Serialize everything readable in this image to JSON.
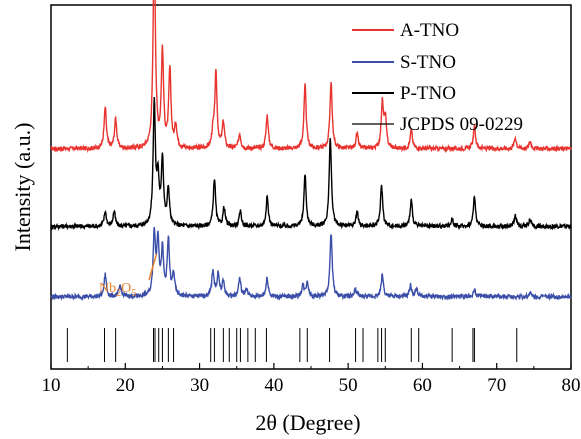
{
  "chart_data": {
    "type": "line",
    "xlabel": "2θ (Degree)",
    "ylabel": "Intensity (a.u.)",
    "xlim": [
      10,
      80
    ],
    "xticks": [
      "10",
      "20",
      "30",
      "40",
      "50",
      "60",
      "70",
      "80"
    ],
    "grid": false,
    "legend": {
      "placement": "top-right",
      "entries": [
        {
          "label": "A-TNO",
          "color": "#e8332f"
        },
        {
          "label": "S-TNO",
          "color": "#3b4fa8"
        },
        {
          "label": "P-TNO",
          "color": "#000000"
        },
        {
          "label": "JCPDS 09-0229",
          "color": "#000000"
        }
      ]
    },
    "annotation": {
      "text": "Nb",
      "sub": "2",
      "mid": "O",
      "sub2": "5",
      "x": 24.2,
      "color": "#e8822f"
    },
    "series": [
      {
        "name": "A-TNO",
        "color": "#e8332f",
        "baseline": 4.9,
        "peaks": [
          [
            17.3,
            1.1
          ],
          [
            18.7,
            0.8
          ],
          [
            23.9,
            5.6
          ],
          [
            25.0,
            2.6
          ],
          [
            26.0,
            2.1
          ],
          [
            26.8,
            0.6
          ],
          [
            31.8,
            0.4
          ],
          [
            32.2,
            2.0
          ],
          [
            33.2,
            0.7
          ],
          [
            35.4,
            0.4
          ],
          [
            39.1,
            0.9
          ],
          [
            44.2,
            1.7
          ],
          [
            47.7,
            1.8
          ],
          [
            51.2,
            0.4
          ],
          [
            54.6,
            1.2
          ],
          [
            55.0,
            0.8
          ],
          [
            58.5,
            0.5
          ],
          [
            67.0,
            0.6
          ],
          [
            72.5,
            0.3
          ],
          [
            74.5,
            0.2
          ]
        ]
      },
      {
        "name": "P-TNO",
        "color": "#000000",
        "baseline": 2.8,
        "peaks": [
          [
            17.3,
            0.4
          ],
          [
            18.5,
            0.4
          ],
          [
            23.9,
            3.3
          ],
          [
            24.4,
            1.2
          ],
          [
            25.0,
            1.8
          ],
          [
            25.8,
            1.0
          ],
          [
            32.0,
            1.3
          ],
          [
            33.3,
            0.5
          ],
          [
            35.5,
            0.4
          ],
          [
            39.1,
            0.8
          ],
          [
            44.2,
            1.4
          ],
          [
            47.6,
            2.4
          ],
          [
            51.2,
            0.4
          ],
          [
            54.5,
            1.1
          ],
          [
            58.5,
            0.7
          ],
          [
            64.0,
            0.2
          ],
          [
            67.0,
            0.8
          ],
          [
            72.5,
            0.3
          ],
          [
            74.5,
            0.2
          ]
        ]
      },
      {
        "name": "S-TNO",
        "color": "#3b4fa8",
        "baseline": 0.9,
        "peaks": [
          [
            17.3,
            0.6
          ],
          [
            19.3,
            0.3
          ],
          [
            23.9,
            1.7
          ],
          [
            24.4,
            1.5
          ],
          [
            25.0,
            1.2
          ],
          [
            25.8,
            1.5
          ],
          [
            26.5,
            0.6
          ],
          [
            31.8,
            0.7
          ],
          [
            32.5,
            0.6
          ],
          [
            33.2,
            0.4
          ],
          [
            35.4,
            0.5
          ],
          [
            36.3,
            0.2
          ],
          [
            39.1,
            0.5
          ],
          [
            43.9,
            0.3
          ],
          [
            44.5,
            0.4
          ],
          [
            47.7,
            1.7
          ],
          [
            51.0,
            0.2
          ],
          [
            54.6,
            0.6
          ],
          [
            58.4,
            0.3
          ],
          [
            59.2,
            0.2
          ],
          [
            67.0,
            0.2
          ],
          [
            74.5,
            0.1
          ]
        ]
      }
    ],
    "reference_lines_x": [
      12.2,
      17.2,
      18.7,
      23.8,
      24.0,
      24.5,
      25.0,
      25.8,
      26.5,
      31.5,
      32.0,
      33.2,
      34.0,
      35.0,
      35.5,
      36.5,
      37.5,
      39.0,
      43.5,
      44.5,
      47.5,
      51.0,
      52.0,
      54.0,
      54.5,
      55.0,
      58.5,
      59.5,
      64.0,
      66.8,
      67.0,
      72.7
    ]
  }
}
